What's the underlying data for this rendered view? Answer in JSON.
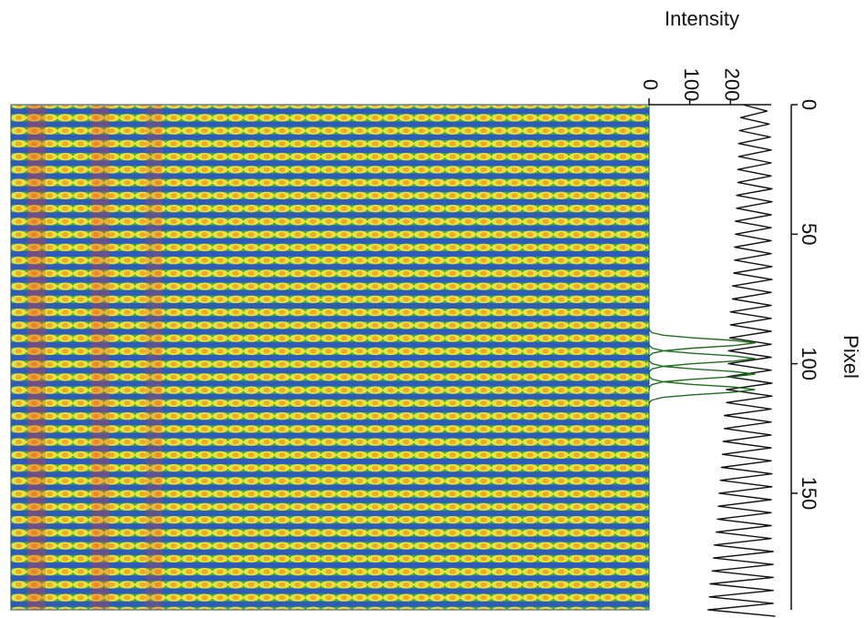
{
  "chart_data": {
    "type": "line",
    "x_label": "Pixel",
    "y_label": "Intensity",
    "xlim": [
      0,
      195
    ],
    "xticks": [
      0,
      50,
      100,
      150
    ],
    "ylim": [
      0,
      300
    ],
    "yticks": [
      0,
      100,
      200
    ],
    "series": [
      {
        "color": "#111111",
        "x": [
          0,
          2.5,
          5,
          7.5,
          10,
          12.5,
          15,
          17.5,
          20,
          22.5,
          25,
          27.5,
          30,
          32.5,
          35,
          37.5,
          40,
          42.5,
          45,
          47.5,
          50,
          52.5,
          55,
          57.5,
          60,
          62.5,
          65,
          67.5,
          70,
          72.5,
          75,
          77.5,
          80,
          82.5,
          85,
          87.5,
          90,
          92.5,
          95,
          97.5,
          100,
          102.5,
          105,
          107.5,
          110,
          112.5,
          115,
          117.5,
          120,
          122.5,
          125,
          127.5,
          130,
          132.5,
          135,
          137.5,
          140,
          142.5,
          145,
          147.5,
          150,
          152.5,
          155,
          157.5,
          160,
          162.5,
          165,
          167.5,
          170,
          172.5,
          175,
          177.5,
          180,
          182.5,
          185,
          187.5,
          190,
          192.5,
          195,
          197.5
        ],
        "values": [
          230,
          290,
          225,
          295,
          222,
          298,
          220,
          300,
          220,
          300,
          218,
          300,
          218,
          302,
          215,
          302,
          215,
          300,
          212,
          300,
          212,
          300,
          210,
          300,
          210,
          302,
          208,
          302,
          205,
          300,
          205,
          300,
          200,
          300,
          200,
          300,
          198,
          300,
          195,
          300,
          195,
          300,
          192,
          302,
          190,
          302,
          190,
          300,
          185,
          300,
          185,
          300,
          182,
          300,
          180,
          300,
          178,
          302,
          175,
          302,
          172,
          300,
          170,
          300,
          168,
          300,
          165,
          300,
          160,
          305,
          158,
          305,
          155,
          305,
          150,
          305,
          148,
          305,
          145,
          310
        ]
      },
      {
        "color": "#1f6e1f",
        "x": [
          86,
          87,
          88,
          89,
          90,
          91,
          92,
          93,
          94,
          95,
          96,
          97,
          98
        ],
        "values": [
          0,
          1,
          7.5,
          35,
          107,
          208,
          260,
          208,
          107,
          35,
          7.5,
          1,
          0
        ]
      },
      {
        "color": "#1f6e1f",
        "x": [
          92,
          93,
          94,
          95,
          96,
          97,
          98,
          99,
          100,
          101,
          102,
          103,
          104
        ],
        "values": [
          0,
          1,
          7.5,
          35,
          107,
          208,
          260,
          208,
          107,
          35,
          7.5,
          1,
          0
        ]
      },
      {
        "color": "#1f6e1f",
        "x": [
          98,
          99,
          100,
          101,
          102,
          103,
          104,
          105,
          106,
          107,
          108,
          109,
          110
        ],
        "values": [
          0,
          1,
          7.5,
          35,
          107,
          208,
          260,
          208,
          107,
          35,
          7.5,
          1,
          0
        ]
      },
      {
        "color": "#1f6e1f",
        "x": [
          104,
          105,
          106,
          107,
          108,
          109,
          110,
          111,
          112,
          113,
          114,
          115,
          116
        ],
        "values": [
          0,
          1,
          7.5,
          35,
          107,
          208,
          260,
          208,
          107,
          35,
          7.5,
          1,
          0
        ]
      }
    ]
  }
}
